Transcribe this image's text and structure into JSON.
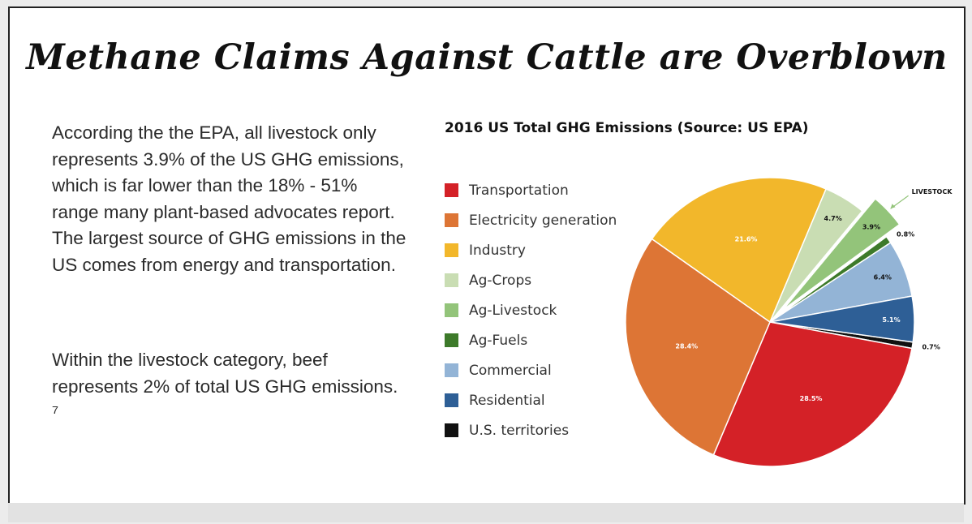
{
  "slide": {
    "title": "Methane Claims Against Cattle are Overblown",
    "paragraphs": [
      "According the the EPA, all livestock only represents 3.9% of the US GHG emissions, which is far lower than the 18% - 51% range many plant-based advocates report. The largest source of GHG emissions in the US comes from energy and transportation.",
      "Within the livestock category, beef represents 2% of total US GHG emissions. ⁷"
    ]
  },
  "chart_data": {
    "type": "pie",
    "title": "2016 US Total GHG Emissions (Source: US EPA)",
    "legend_position": "left",
    "slices": [
      {
        "label": "Transportation",
        "value": 28.5,
        "value_label": "28.5%",
        "color": "#d42127",
        "label_color": "#ffffff"
      },
      {
        "label": "Electricity generation",
        "value": 28.4,
        "value_label": "28.4%",
        "color": "#dd7535",
        "label_color": "#ffffff"
      },
      {
        "label": "Industry",
        "value": 21.6,
        "value_label": "21.6%",
        "color": "#f2b72b",
        "label_color": "#ffffff"
      },
      {
        "label": "Ag-Crops",
        "value": 4.7,
        "value_label": "4.7%",
        "color": "#c9ddb3",
        "label_color": "#111111"
      },
      {
        "label": "Ag-Livestock",
        "value": 3.9,
        "value_label": "3.9%",
        "color": "#93c47a",
        "label_color": "#111111",
        "exploded": true
      },
      {
        "label": "Ag-Fuels",
        "value": 0.8,
        "value_label": "0.8%",
        "color": "#3d7a2a",
        "label_color": "#111111"
      },
      {
        "label": "Commercial",
        "value": 6.4,
        "value_label": "6.4%",
        "color": "#93b4d6",
        "label_color": "#111111"
      },
      {
        "label": "Residential",
        "value": 5.1,
        "value_label": "5.1%",
        "color": "#2e5f96",
        "label_color": "#ffffff"
      },
      {
        "label": "U.S. territories",
        "value": 0.7,
        "value_label": "0.7%",
        "color": "#111111",
        "label_color": "#111111"
      }
    ],
    "annotation": {
      "text": "LIVESTOCK",
      "target": "Ag-Livestock"
    }
  }
}
